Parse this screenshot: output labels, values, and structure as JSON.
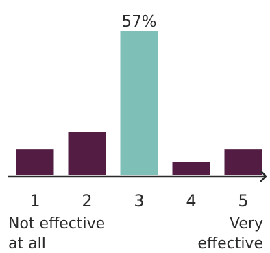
{
  "chart_data": {
    "type": "bar",
    "categories": [
      "1",
      "2",
      "3",
      "4",
      "5"
    ],
    "values": [
      10,
      17,
      57,
      5,
      10
    ],
    "value_unit": "%",
    "data_labels": [
      {
        "index": 2,
        "text": "57%"
      }
    ],
    "highlight_index": 2,
    "colors": {
      "bar": "#521c43",
      "highlight": "#7ebfb8",
      "axis": "#2a2a2a",
      "text": "#2a2a2a"
    },
    "ylim": [
      0,
      57
    ],
    "grid": false,
    "legend": "none",
    "scale_captions": {
      "low": [
        "Not effective",
        "at all"
      ],
      "high": [
        "Very",
        "effective"
      ]
    }
  }
}
